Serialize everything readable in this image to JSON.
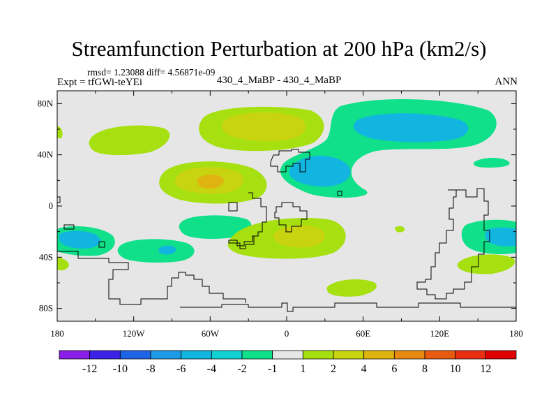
{
  "chart_data": {
    "type": "heatmap",
    "title": "Streamfunction Perturbation at 200 hPa (km2/s)",
    "left_string_top": "rmsd= 1.23088 diff= 4.56871e-09",
    "left_string": "Expt = tfGWi-teYEi",
    "center_string": "430_4_MaBP - 430_4_MaBP",
    "right_string": "ANN",
    "xlim": [
      -180,
      180
    ],
    "ylim": [
      -90,
      90
    ],
    "x_ticks": [
      {
        "value": -180,
        "label": "180"
      },
      {
        "value": -120,
        "label": "120W"
      },
      {
        "value": -60,
        "label": "60W"
      },
      {
        "value": 0,
        "label": "0"
      },
      {
        "value": 60,
        "label": "60E"
      },
      {
        "value": 120,
        "label": "120E"
      },
      {
        "value": 180,
        "label": "180"
      }
    ],
    "y_ticks": [
      {
        "value": 80,
        "label": "80N"
      },
      {
        "value": 40,
        "label": "40N"
      },
      {
        "value": 0,
        "label": "0"
      },
      {
        "value": -40,
        "label": "40S"
      },
      {
        "value": -80,
        "label": "80S"
      }
    ],
    "colorbar": {
      "levels": [
        "-12",
        "-10",
        "-8",
        "-6",
        "-4",
        "-2",
        "-1",
        "1",
        "2",
        "4",
        "6",
        "8",
        "10",
        "12"
      ],
      "colors": [
        "#8a1ee8",
        "#3c22e6",
        "#1e64e6",
        "#1e9be6",
        "#12b4e0",
        "#10d0d4",
        "#10e08a",
        "#e6e6e6",
        "#a6e010",
        "#c8d410",
        "#e0b410",
        "#e88a10",
        "#e85a10",
        "#e83010",
        "#e00000"
      ]
    },
    "features": [
      {
        "name": "positive-anomaly-north-atlantic",
        "lon": -35,
        "lat": 60,
        "peak": 4
      },
      {
        "name": "positive-anomaly-north-pacific-west",
        "lon": -145,
        "lat": 52,
        "peak": 2
      },
      {
        "name": "positive-anomaly-tropical-pacific",
        "lon": -60,
        "lat": 20,
        "peak": 6
      },
      {
        "name": "negative-anomaly-eurasia",
        "lon": 70,
        "lat": 58,
        "peak": -4
      },
      {
        "name": "negative-anomaly-middle-east",
        "lon": 30,
        "lat": 25,
        "peak": -4
      },
      {
        "name": "positive-anomaly-south-atlantic",
        "lon": 15,
        "lat": -20,
        "peak": 4
      },
      {
        "name": "negative-anomaly-south-pacific-west",
        "lon": -165,
        "lat": -25,
        "peak": -4
      },
      {
        "name": "negative-anomaly-south-pacific",
        "lon": -95,
        "lat": -35,
        "peak": -4
      },
      {
        "name": "negative-anomaly-indian-ocean",
        "lon": 165,
        "lat": -22,
        "peak": -4
      },
      {
        "name": "positive-anomaly-southern-ocean",
        "lon": 50,
        "lat": -65,
        "peak": 2
      }
    ]
  }
}
